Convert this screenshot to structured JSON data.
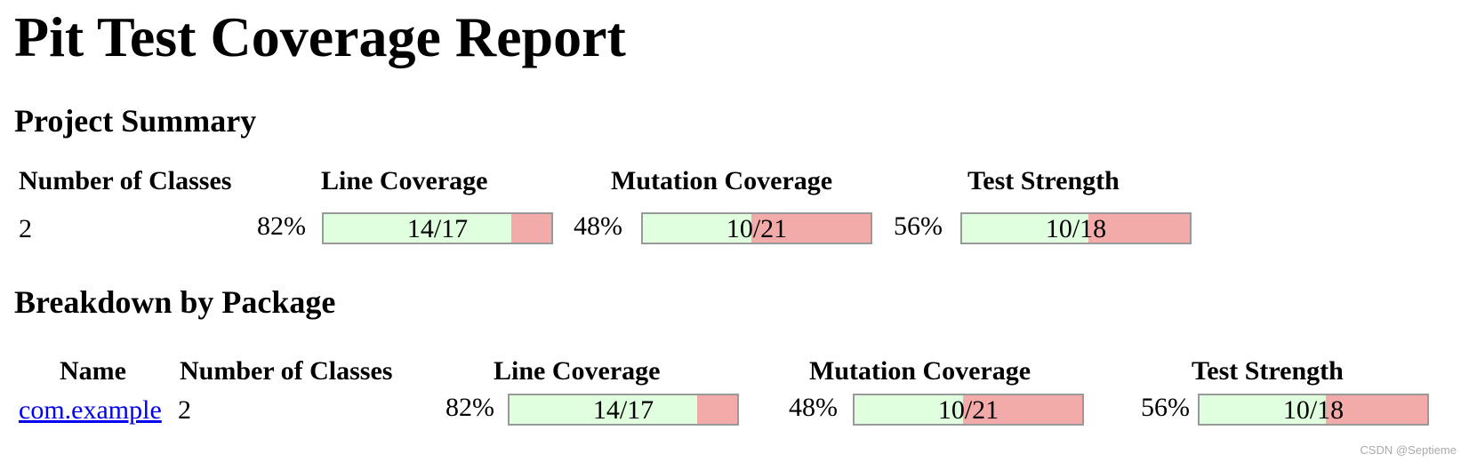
{
  "title": "Pit Test Coverage Report",
  "project_summary": {
    "heading": "Project Summary",
    "headers": {
      "classes": "Number of Classes",
      "line": "Line Coverage",
      "mutation": "Mutation Coverage",
      "strength": "Test Strength"
    },
    "row": {
      "classes": "2",
      "line": {
        "percent": "82%",
        "fraction": "14/17",
        "covered": 14,
        "total": 17
      },
      "mutation": {
        "percent": "48%",
        "fraction": "10/21",
        "covered": 10,
        "total": 21
      },
      "strength": {
        "percent": "56%",
        "fraction": "10/18",
        "covered": 10,
        "total": 18
      }
    }
  },
  "breakdown": {
    "heading": "Breakdown by Package",
    "headers": {
      "name": "Name",
      "classes": "Number of Classes",
      "line": "Line Coverage",
      "mutation": "Mutation Coverage",
      "strength": "Test Strength"
    },
    "rows": [
      {
        "name": "com.example",
        "classes": "2",
        "line": {
          "percent": "82%",
          "fraction": "14/17",
          "covered": 14,
          "total": 17
        },
        "mutation": {
          "percent": "48%",
          "fraction": "10/21",
          "covered": 10,
          "total": 21
        },
        "strength": {
          "percent": "56%",
          "fraction": "10/18",
          "covered": 10,
          "total": 18
        }
      }
    ]
  },
  "colors": {
    "covered": "#dfffdf",
    "uncovered": "#f2aba8",
    "bar_border": "#999999",
    "link": "#0000ee"
  },
  "watermark": "CSDN @Septieme"
}
